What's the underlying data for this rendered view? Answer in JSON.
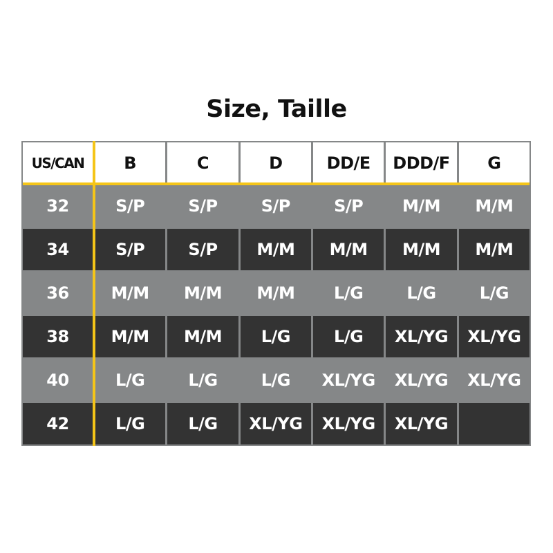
{
  "title": "Size, Taille",
  "colors": {
    "accent": "#f5c518",
    "light_row": "#858788",
    "dark_row": "#333333"
  },
  "headers": [
    "US/CAN",
    "B",
    "C",
    "D",
    "DD/E",
    "DDD/F",
    "G"
  ],
  "rows": [
    {
      "band": "32",
      "sizes": [
        "S/P",
        "S/P",
        "S/P",
        "S/P",
        "M/M",
        "M/M"
      ]
    },
    {
      "band": "34",
      "sizes": [
        "S/P",
        "S/P",
        "M/M",
        "M/M",
        "M/M",
        "M/M"
      ]
    },
    {
      "band": "36",
      "sizes": [
        "M/M",
        "M/M",
        "M/M",
        "L/G",
        "L/G",
        "L/G"
      ]
    },
    {
      "band": "38",
      "sizes": [
        "M/M",
        "M/M",
        "L/G",
        "L/G",
        "XL/YG",
        "XL/YG"
      ]
    },
    {
      "band": "40",
      "sizes": [
        "L/G",
        "L/G",
        "L/G",
        "XL/YG",
        "XL/YG",
        "XL/YG"
      ]
    },
    {
      "band": "42",
      "sizes": [
        "L/G",
        "L/G",
        "XL/YG",
        "XL/YG",
        "XL/YG",
        ""
      ]
    }
  ]
}
